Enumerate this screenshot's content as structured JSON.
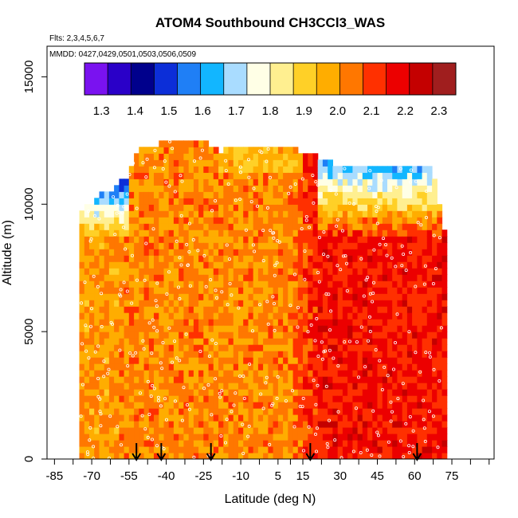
{
  "chart_data": {
    "type": "heatmap",
    "title": "ATOM4 Southbound CH3CCl3_WAS",
    "flights_note": "Flts: 2,3,4,5,6,7",
    "dates_note": "MMDD: 0427,0429,0501,0503,0506,0509",
    "xlabel": "Latitude (deg N)",
    "ylabel": "Altitude (m)",
    "xlim": [
      -88,
      92
    ],
    "ylim": [
      0,
      16200
    ],
    "x_ticks": [
      -85,
      -70,
      -55,
      -40,
      -25,
      -10,
      5,
      15,
      30,
      45,
      60,
      75
    ],
    "x_minor_ticks": [
      -77.5,
      -62.5,
      -47.5,
      -32.5,
      -17.5,
      -2.5,
      10,
      22.5,
      37.5,
      52.5,
      67.5,
      82.5,
      90
    ],
    "y_ticks": [
      0,
      5000,
      10000,
      15000
    ],
    "colorbar": {
      "range": [
        1.25,
        2.35
      ],
      "ticks": [
        1.3,
        1.4,
        1.5,
        1.6,
        1.7,
        1.8,
        1.9,
        2.0,
        2.1,
        2.2,
        2.3
      ],
      "colors": [
        "#7a12f0",
        "#2a00c8",
        "#00008c",
        "#0c2ed8",
        "#1f7ff6",
        "#12b6ff",
        "#a9dcff",
        "#ffffe6",
        "#ffef90",
        "#ffd027",
        "#ffad00",
        "#ff7700",
        "#ff3000",
        "#ec0000",
        "#c40000",
        "#a01e1e"
      ]
    },
    "profiles": [
      {
        "lat": -75,
        "top": 9600
      },
      {
        "lat": -69,
        "top": 10200
      },
      {
        "lat": -63,
        "top": 10400
      },
      {
        "lat": -57,
        "top": 11000
      },
      {
        "lat": -52,
        "top": 12200
      },
      {
        "lat": -45,
        "top": 12200
      },
      {
        "lat": -39,
        "top": 12500
      },
      {
        "lat": -32,
        "top": 12500
      },
      {
        "lat": -25,
        "top": 12300
      },
      {
        "lat": -19,
        "top": 12000
      },
      {
        "lat": -12,
        "top": 12100
      },
      {
        "lat": -6,
        "top": 12000
      },
      {
        "lat": 0,
        "top": 12200
      },
      {
        "lat": 6,
        "top": 12200
      },
      {
        "lat": 12,
        "top": 12000
      },
      {
        "lat": 18,
        "top": 11800
      },
      {
        "lat": 24,
        "top": 11600
      },
      {
        "lat": 30,
        "top": 11400
      },
      {
        "lat": 36,
        "top": 11400
      },
      {
        "lat": 42,
        "top": 11400
      },
      {
        "lat": 48,
        "top": 11400
      },
      {
        "lat": 54,
        "top": 11400
      },
      {
        "lat": 60,
        "top": 11400
      },
      {
        "lat": 66,
        "top": 11400
      },
      {
        "lat": 71,
        "top": 9000
      }
    ],
    "flight_markers_lat": [
      -52,
      -42,
      -22,
      18,
      61
    ]
  }
}
